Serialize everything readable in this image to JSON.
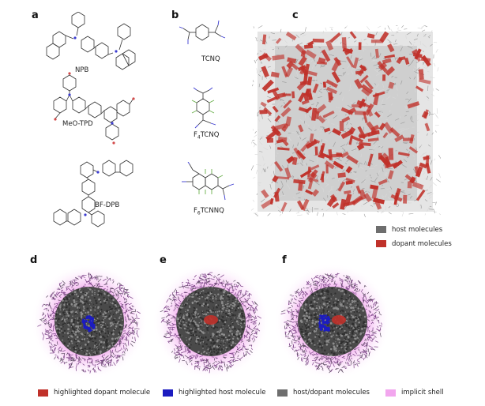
{
  "panels": {
    "a": "a",
    "b": "b",
    "c": "c",
    "d": "d",
    "e": "e",
    "f": "f"
  },
  "hosts": {
    "npb": "NPB",
    "meo_tpd": "MeO-TPD",
    "bf_dpb": "BF-DPB"
  },
  "dopants": {
    "tcnq": "TCNQ",
    "f4_prefix": "F",
    "f4_sub": "4",
    "f4_suffix": "TCNQ",
    "f6_prefix": "F",
    "f6_sub": "6",
    "f6_suffix": "TCNNQ"
  },
  "legend_c": {
    "host": "host molecules",
    "dopant": "dopant molecules"
  },
  "legend_bottom": {
    "dopant": "highlighted dopant molecule",
    "host": "highlighted host molecule",
    "mixed": "host/dopant molecules",
    "shell": "implicit shell"
  },
  "colors": {
    "dopant": "#c0312a",
    "host_highlight": "#1c1cc0",
    "gray": "#6e6e6e",
    "shell": "#f2a6ee",
    "purple": "#7a3f86"
  }
}
